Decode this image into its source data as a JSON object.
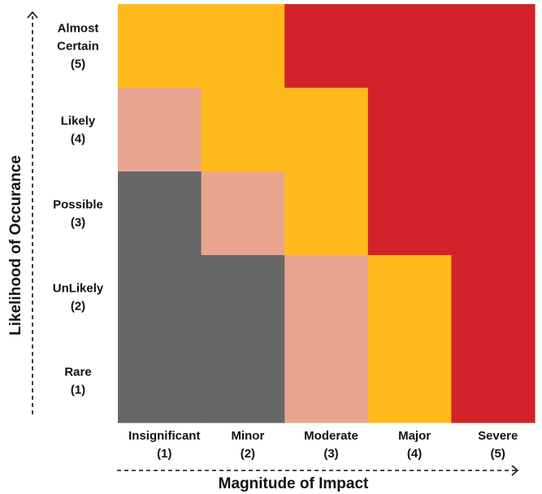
{
  "chart_data": {
    "type": "heatmap",
    "title": "",
    "xlabel": "Magnitude of Impact",
    "ylabel": "Likelihood of Occurance",
    "x_categories": [
      [
        "Insignificant",
        "(1)"
      ],
      [
        "Minor",
        "(2)"
      ],
      [
        "Moderate",
        "(3)"
      ],
      [
        "Major",
        "(4)"
      ],
      [
        "Severe",
        "(5)"
      ]
    ],
    "y_categories_top_to_bottom": [
      [
        "Almost",
        "Certain",
        "(5)"
      ],
      [
        "Likely",
        "(4)"
      ],
      [
        "Possible",
        "(3)"
      ],
      [
        "UnLikely",
        "(2)"
      ],
      [
        "Rare",
        "(1)"
      ]
    ],
    "levels": [
      "low",
      "medium",
      "high",
      "extreme"
    ],
    "level_colors": {
      "low": "#666768",
      "medium": "#E8A48E",
      "high": "#FEBA1A",
      "extreme": "#D3232A"
    },
    "cells_top_to_bottom": [
      [
        "high",
        "high",
        "extreme",
        "extreme",
        "extreme"
      ],
      [
        "medium",
        "high",
        "high",
        "extreme",
        "extreme"
      ],
      [
        "low",
        "medium",
        "high",
        "extreme",
        "extreme"
      ],
      [
        "low",
        "low",
        "medium",
        "high",
        "extreme"
      ],
      [
        "low",
        "low",
        "medium",
        "high",
        "extreme"
      ]
    ],
    "legend": "none",
    "grid": false
  }
}
